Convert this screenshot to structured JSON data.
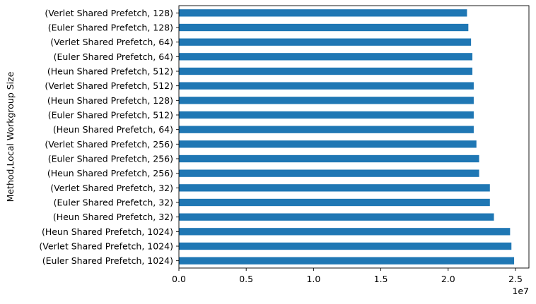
{
  "chart_data": {
    "type": "bar",
    "orientation": "horizontal",
    "ylabel": "Method,Local Workgroup Size",
    "xlabel": "",
    "x_scale_label": "1e7",
    "xlim": [
      0,
      2.6
    ],
    "x_ticks": [
      0.0,
      0.5,
      1.0,
      1.5,
      2.0,
      2.5
    ],
    "x_tick_labels": [
      "0.0",
      "0.5",
      "1.0",
      "1.5",
      "2.0",
      "2.5"
    ],
    "grid": false,
    "bar_color": "#1f77b4",
    "categories": [
      "(Euler Shared Prefetch, 1024)",
      "(Verlet Shared Prefetch, 1024)",
      "(Heun Shared Prefetch, 1024)",
      "(Heun Shared Prefetch, 32)",
      "(Euler Shared Prefetch, 32)",
      "(Verlet Shared Prefetch, 32)",
      "(Heun Shared Prefetch, 256)",
      "(Euler Shared Prefetch, 256)",
      "(Verlet Shared Prefetch, 256)",
      "(Heun Shared Prefetch, 64)",
      "(Euler Shared Prefetch, 512)",
      "(Heun Shared Prefetch, 128)",
      "(Verlet Shared Prefetch, 512)",
      "(Heun Shared Prefetch, 512)",
      "(Euler Shared Prefetch, 64)",
      "(Verlet Shared Prefetch, 64)",
      "(Euler Shared Prefetch, 128)",
      "(Verlet Shared Prefetch, 128)"
    ],
    "values": [
      2.49,
      2.47,
      2.46,
      2.34,
      2.31,
      2.31,
      2.23,
      2.23,
      2.21,
      2.19,
      2.19,
      2.19,
      2.19,
      2.18,
      2.18,
      2.17,
      2.15,
      2.14
    ]
  }
}
